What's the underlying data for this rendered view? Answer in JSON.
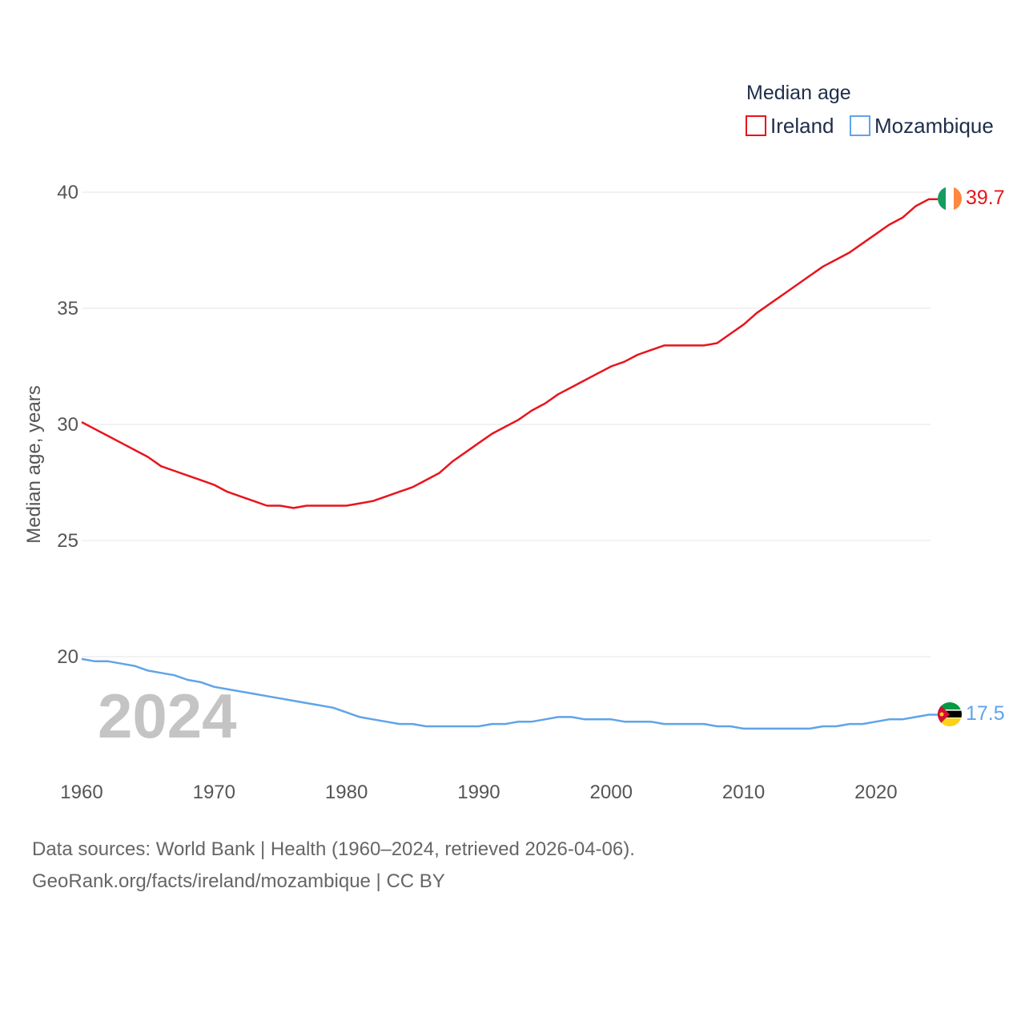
{
  "chart_data": {
    "type": "line",
    "legend_title": "Median age",
    "ylabel": "Median age, years",
    "ylim": [
      15,
      40
    ],
    "xlim": [
      1960,
      2024
    ],
    "y_ticks": [
      "20",
      "25",
      "30",
      "35",
      "40"
    ],
    "x_ticks": [
      "1960",
      "1970",
      "1980",
      "1990",
      "2000",
      "2010",
      "2020"
    ],
    "current_year": "2024",
    "series": [
      {
        "name": "Ireland",
        "color": "#e8141c",
        "end_label": "39.7",
        "flag": "ireland-flag-icon",
        "x": [
          1960,
          1961,
          1962,
          1963,
          1964,
          1965,
          1966,
          1967,
          1968,
          1969,
          1970,
          1971,
          1972,
          1973,
          1974,
          1975,
          1976,
          1977,
          1978,
          1979,
          1980,
          1981,
          1982,
          1983,
          1984,
          1985,
          1986,
          1987,
          1988,
          1989,
          1990,
          1991,
          1992,
          1993,
          1994,
          1995,
          1996,
          1997,
          1998,
          1999,
          2000,
          2001,
          2002,
          2003,
          2004,
          2005,
          2006,
          2007,
          2008,
          2009,
          2010,
          2011,
          2012,
          2013,
          2014,
          2015,
          2016,
          2017,
          2018,
          2019,
          2020,
          2021,
          2022,
          2023,
          2024
        ],
        "values": [
          30.1,
          29.8,
          29.5,
          29.2,
          28.9,
          28.6,
          28.2,
          28.0,
          27.8,
          27.6,
          27.4,
          27.1,
          26.9,
          26.7,
          26.5,
          26.5,
          26.4,
          26.5,
          26.5,
          26.5,
          26.5,
          26.6,
          26.7,
          26.9,
          27.1,
          27.3,
          27.6,
          27.9,
          28.4,
          28.8,
          29.2,
          29.6,
          29.9,
          30.2,
          30.6,
          30.9,
          31.3,
          31.6,
          31.9,
          32.2,
          32.5,
          32.7,
          33.0,
          33.2,
          33.4,
          33.4,
          33.4,
          33.4,
          33.5,
          33.9,
          34.3,
          34.8,
          35.2,
          35.6,
          36.0,
          36.4,
          36.8,
          37.1,
          37.4,
          37.8,
          38.2,
          38.6,
          38.9,
          39.4,
          39.7
        ]
      },
      {
        "name": "Mozambique",
        "color": "#5fa4e8",
        "end_label": "17.5",
        "flag": "mozambique-flag-icon",
        "x": [
          1960,
          1961,
          1962,
          1963,
          1964,
          1965,
          1966,
          1967,
          1968,
          1969,
          1970,
          1971,
          1972,
          1973,
          1974,
          1975,
          1976,
          1977,
          1978,
          1979,
          1980,
          1981,
          1982,
          1983,
          1984,
          1985,
          1986,
          1987,
          1988,
          1989,
          1990,
          1991,
          1992,
          1993,
          1994,
          1995,
          1996,
          1997,
          1998,
          1999,
          2000,
          2001,
          2002,
          2003,
          2004,
          2005,
          2006,
          2007,
          2008,
          2009,
          2010,
          2011,
          2012,
          2013,
          2014,
          2015,
          2016,
          2017,
          2018,
          2019,
          2020,
          2021,
          2022,
          2023,
          2024
        ],
        "values": [
          19.9,
          19.8,
          19.8,
          19.7,
          19.6,
          19.4,
          19.3,
          19.2,
          19.0,
          18.9,
          18.7,
          18.6,
          18.5,
          18.4,
          18.3,
          18.2,
          18.1,
          18.0,
          17.9,
          17.8,
          17.6,
          17.4,
          17.3,
          17.2,
          17.1,
          17.1,
          17.0,
          17.0,
          17.0,
          17.0,
          17.0,
          17.1,
          17.1,
          17.2,
          17.2,
          17.3,
          17.4,
          17.4,
          17.3,
          17.3,
          17.3,
          17.2,
          17.2,
          17.2,
          17.1,
          17.1,
          17.1,
          17.1,
          17.0,
          17.0,
          16.9,
          16.9,
          16.9,
          16.9,
          16.9,
          16.9,
          17.0,
          17.0,
          17.1,
          17.1,
          17.2,
          17.3,
          17.3,
          17.4,
          17.5
        ]
      }
    ]
  },
  "footer": {
    "line1": "Data sources: World Bank | Health (1960–2024, retrieved 2026-04-06).",
    "line2": "GeoRank.org/facts/ireland/mozambique | CC BY"
  }
}
